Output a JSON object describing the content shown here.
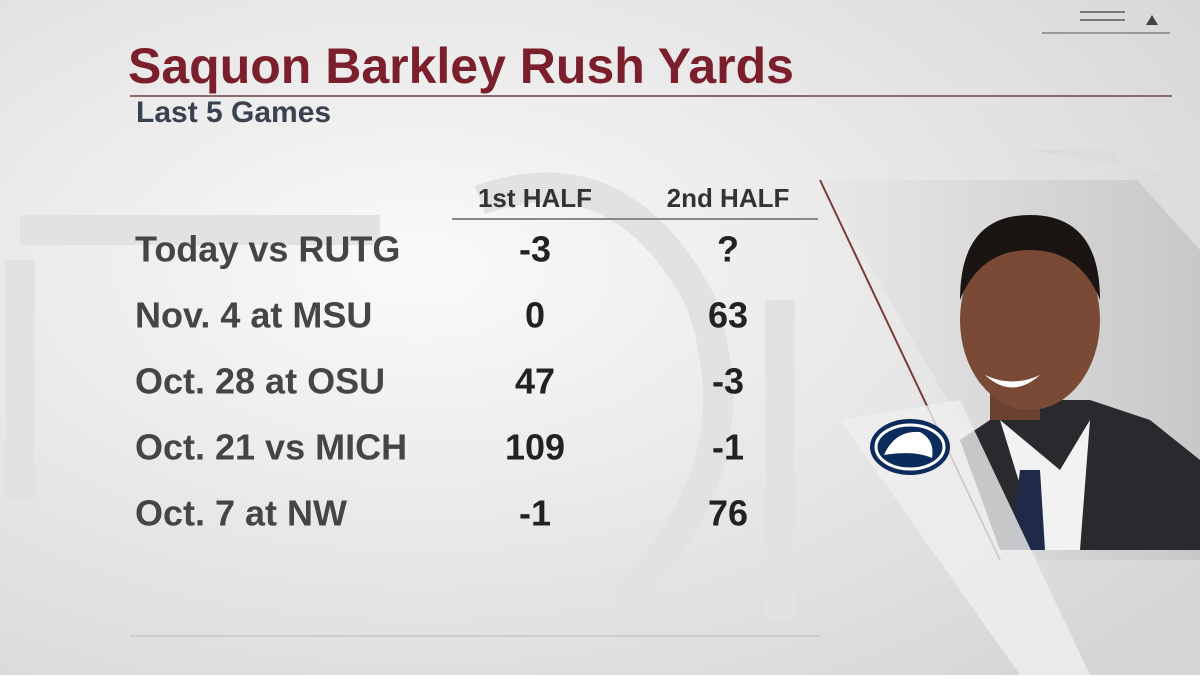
{
  "header": {
    "title": "Saquon Barkley Rush Yards",
    "subtitle": "Last 5 Games"
  },
  "table": {
    "columns": [
      "1st HALF",
      "2nd HALF"
    ],
    "rows": [
      {
        "game": "Today vs RUTG",
        "first_half": -3,
        "second_half": "?"
      },
      {
        "game": "Nov. 4 at MSU",
        "first_half": 0,
        "second_half": 63
      },
      {
        "game": "Oct. 28 at OSU",
        "first_half": 47,
        "second_half": -3
      },
      {
        "game": "Oct. 21 vs MICH",
        "first_half": 109,
        "second_half": -1
      },
      {
        "game": "Oct. 7 at NW",
        "first_half": -1,
        "second_half": 76
      }
    ]
  }
}
